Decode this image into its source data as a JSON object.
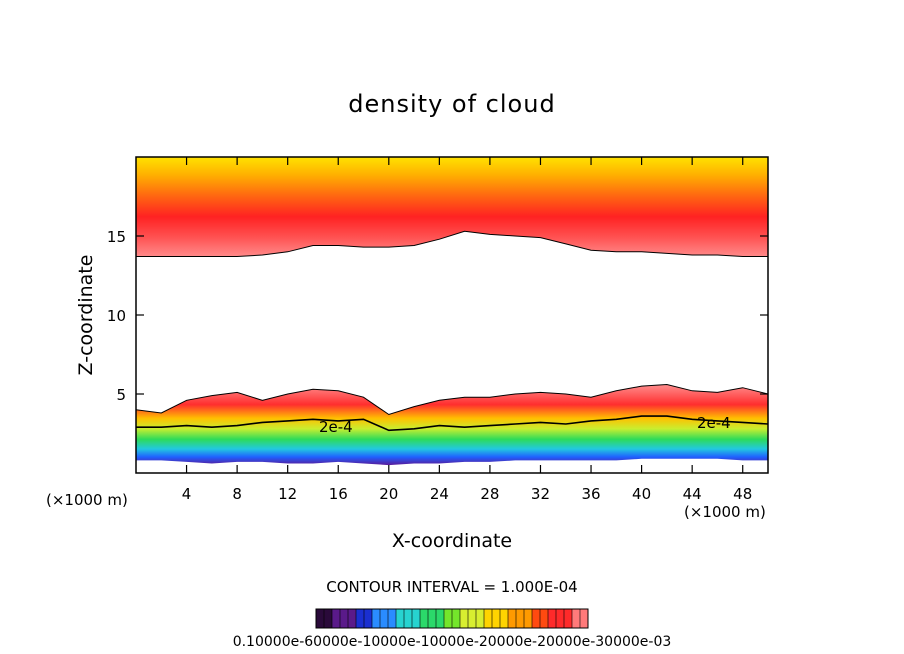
{
  "chart_data": {
    "type": "heatmap",
    "title": "density of cloud",
    "xlabel": "X-coordinate",
    "ylabel": "Z-coordinate",
    "x_unit": "(×1000 m)",
    "y_unit": "(×1000 m)",
    "xlim": [
      0,
      50
    ],
    "ylim": [
      0,
      20
    ],
    "x_ticks": [
      4,
      8,
      12,
      16,
      20,
      24,
      28,
      32,
      36,
      40,
      44,
      48
    ],
    "y_ticks": [
      5,
      10,
      15
    ],
    "contour_interval_text": "CONTOUR INTERVAL = 1.000E-04",
    "contour_labels": [
      "2e-4",
      "2e-4"
    ],
    "colorbar_label_text": "0.10000e-60000e-10000e-10000e-20000e-20000e-30000e-03",
    "colorbar_colors": [
      "#2a0a3a",
      "#5a1a8a",
      "#1a2fd0",
      "#2a8cff",
      "#27d3d0",
      "#2bd96a",
      "#74e62b",
      "#d8ee30",
      "#ffd400",
      "#ff9a00",
      "#ff4a10",
      "#ff2a2a",
      "#ff7a7a"
    ],
    "upper_cloud": {
      "x": [
        0,
        2,
        4,
        8,
        10,
        12,
        14,
        16,
        18,
        20,
        22,
        24,
        26,
        28,
        30,
        32,
        34,
        36,
        38,
        40,
        42,
        44,
        46,
        48,
        50
      ],
      "base_z": [
        13.7,
        13.7,
        13.7,
        13.7,
        13.8,
        14.0,
        14.4,
        14.4,
        14.3,
        14.3,
        14.4,
        14.8,
        15.3,
        15.1,
        15.0,
        14.9,
        14.5,
        14.1,
        14.0,
        14.0,
        13.9,
        13.8,
        13.8,
        13.7,
        13.7
      ],
      "top_z": 20
    },
    "lower_cloud": {
      "x": [
        0,
        2,
        4,
        6,
        8,
        10,
        12,
        14,
        16,
        18,
        20,
        22,
        24,
        26,
        28,
        30,
        32,
        34,
        36,
        38,
        40,
        42,
        44,
        46,
        48,
        50
      ],
      "top_z": [
        4.0,
        3.8,
        4.6,
        4.9,
        5.1,
        4.6,
        5.0,
        5.3,
        5.2,
        4.8,
        3.7,
        4.2,
        4.6,
        4.8,
        4.8,
        5.0,
        5.1,
        5.0,
        4.8,
        5.2,
        5.5,
        5.6,
        5.2,
        5.1,
        5.4,
        5.0
      ],
      "contour_2e4_z": [
        2.9,
        2.9,
        3.0,
        2.9,
        3.0,
        3.2,
        3.3,
        3.4,
        3.3,
        3.4,
        2.7,
        2.8,
        3.0,
        2.9,
        3.0,
        3.1,
        3.2,
        3.1,
        3.3,
        3.4,
        3.6,
        3.6,
        3.4,
        3.3,
        3.2,
        3.1
      ],
      "base_z": [
        0.8,
        0.8,
        0.7,
        0.6,
        0.7,
        0.7,
        0.6,
        0.6,
        0.7,
        0.6,
        0.5,
        0.6,
        0.6,
        0.7,
        0.7,
        0.8,
        0.8,
        0.8,
        0.8,
        0.8,
        0.9,
        0.9,
        0.9,
        0.9,
        0.8,
        0.8
      ]
    }
  }
}
